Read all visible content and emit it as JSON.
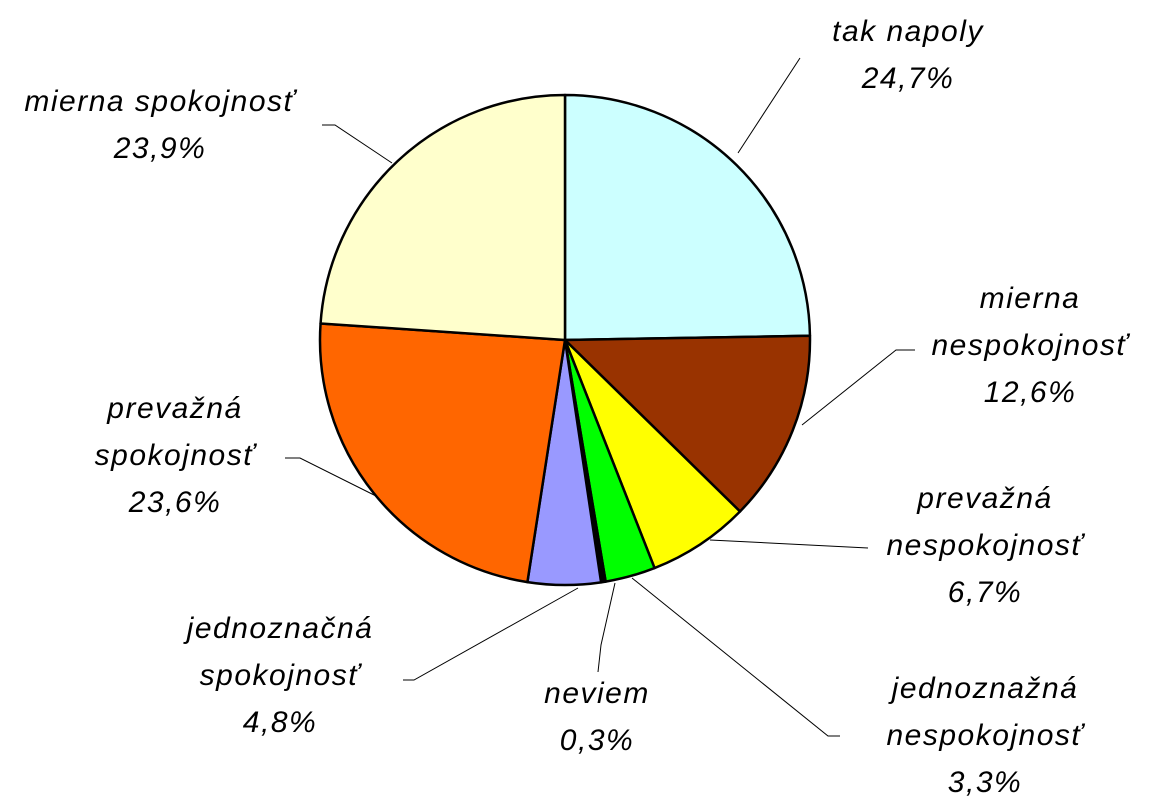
{
  "chart_data": {
    "type": "pie",
    "categories": [
      "tak napoly",
      "mierna nespokojnosť",
      "prevažná nespokojnosť",
      "jednoznažná nespokojnosť",
      "neviem",
      "jednoznačná spokojnosť",
      "prevažná spokojnosť",
      "mierna spokojnosť"
    ],
    "values": [
      24.7,
      12.6,
      6.7,
      3.3,
      0.3,
      4.8,
      23.6,
      23.9
    ],
    "value_labels": [
      "24,7%",
      "12,6%",
      "6,7%",
      "3,3%",
      "0,3%",
      "4,8%",
      "23,6%",
      "23,9%"
    ],
    "colors": [
      "#ccffff",
      "#993300",
      "#ffff00",
      "#00ff00",
      "#000000",
      "#9999ff",
      "#ff6600",
      "#ffffcc"
    ]
  }
}
